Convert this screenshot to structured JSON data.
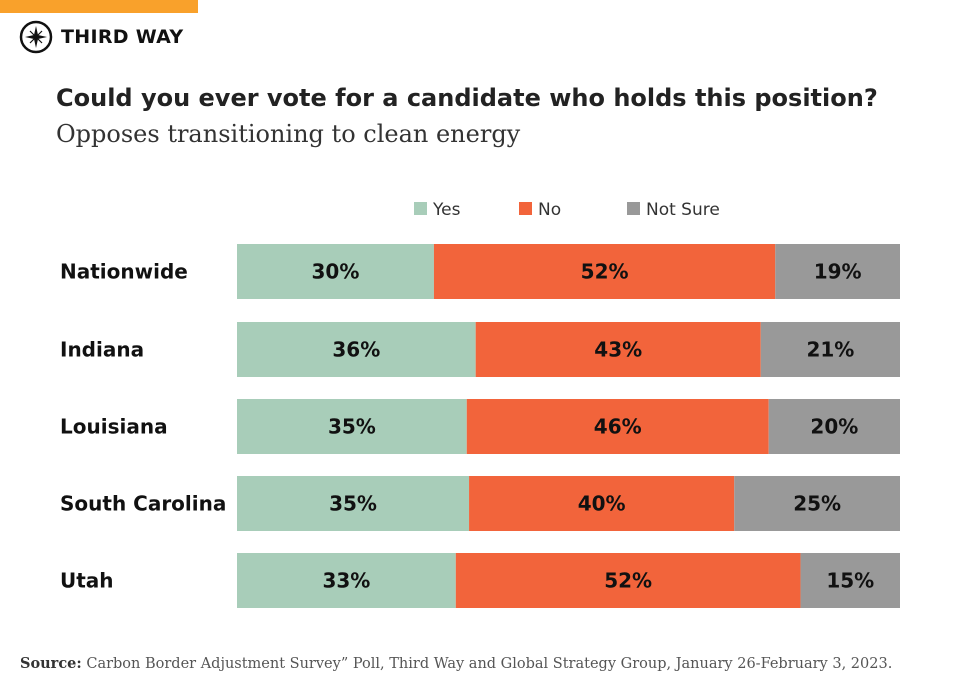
{
  "brand": {
    "name": "THIRD WAY",
    "accent": "#f9a12b"
  },
  "header": {
    "title": "Could you ever vote for a candidate who holds this position?",
    "subtitle": "Opposes transitioning to clean energy"
  },
  "source": {
    "label": "Source:",
    "text": "Carbon Border Adjustment Survey” Poll, Third Way and Global Strategy Group, January 26-February 3, 2023."
  },
  "chart_data": {
    "type": "bar",
    "orientation": "horizontal",
    "stacked": true,
    "categories": [
      "Nationwide",
      "Indiana",
      "Louisiana",
      "South Carolina",
      "Utah"
    ],
    "series": [
      {
        "name": "Yes",
        "color": "#a8cdb9",
        "values": [
          30,
          36,
          35,
          35,
          33
        ]
      },
      {
        "name": "No",
        "color": "#f2643b",
        "values": [
          52,
          43,
          46,
          40,
          52
        ]
      },
      {
        "name": "Not Sure",
        "color": "#999999",
        "values": [
          19,
          21,
          20,
          25,
          15
        ]
      }
    ],
    "value_suffix": "%",
    "legend": "top-center",
    "grid": false
  }
}
